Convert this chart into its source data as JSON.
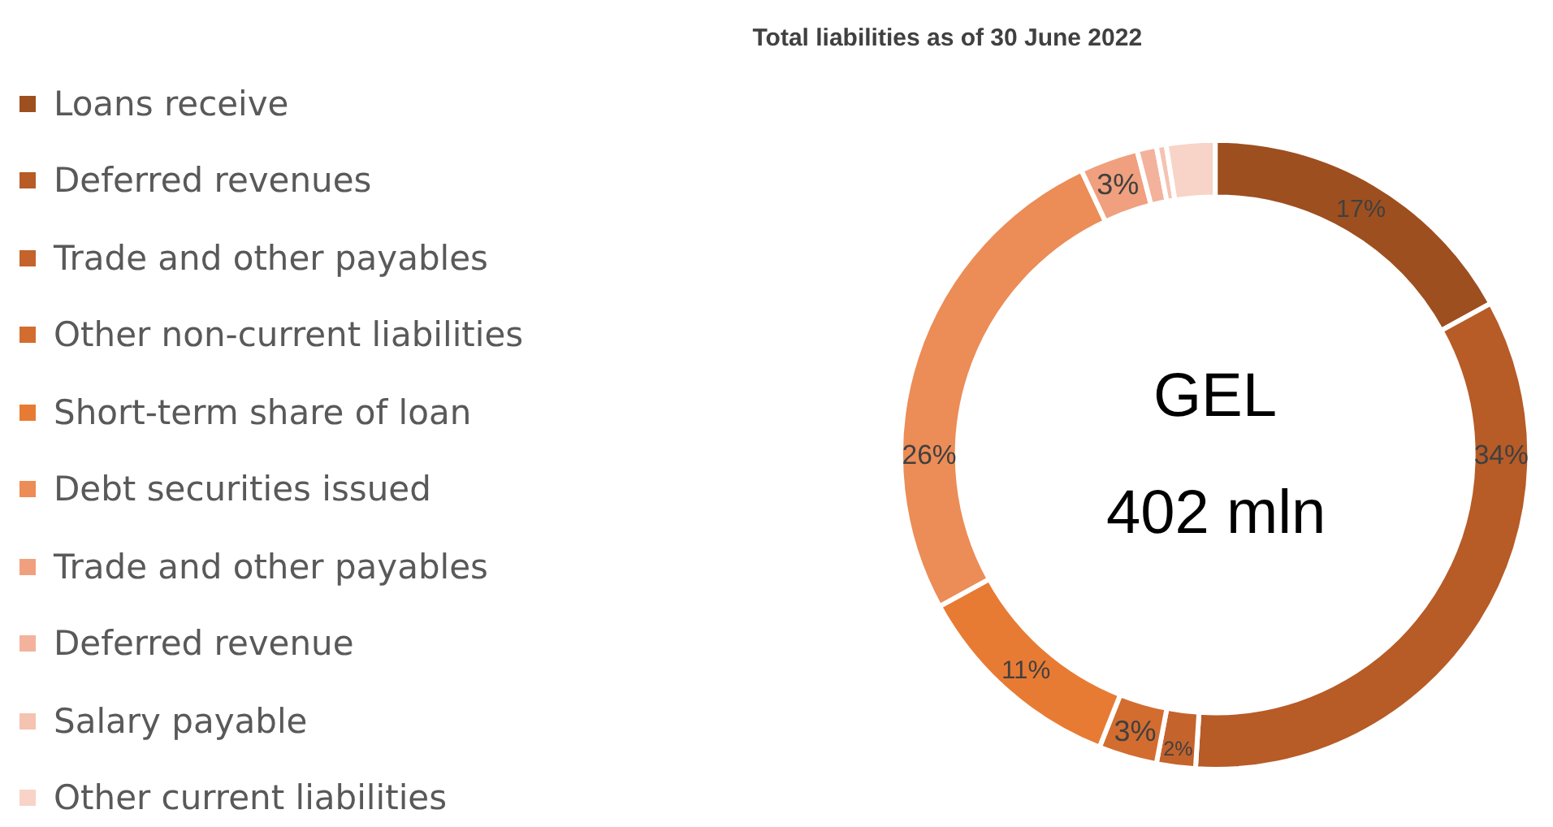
{
  "chart_data": {
    "type": "donut",
    "title": "Total liabilities as of 30 June 2022",
    "categories": [
      "Loans receive",
      "Deferred revenues",
      "Trade and other payables",
      "Other non-current liabilities",
      "Short-term share of loan",
      "Debt securities issued",
      "Trade and other payables",
      "Deferred revenue",
      "Salary payable",
      "Other current liabilities"
    ],
    "values": [
      17,
      34,
      2,
      3,
      11,
      26,
      3,
      1,
      0.5,
      2.5
    ],
    "value_labels": [
      "17%",
      "34%",
      "2%",
      "3%",
      "11%",
      "26%",
      "3%",
      null,
      null,
      null
    ],
    "colors": [
      "#9e4f1f",
      "#b75b27",
      "#c4632b",
      "#d36d2f",
      "#e87b33",
      "#ec8c57",
      "#f0a07e",
      "#f3b29c",
      "#f5c3b2",
      "#f8d3c7"
    ],
    "annotations": [
      "GEL",
      "402 mln"
    ],
    "legend": "left"
  }
}
